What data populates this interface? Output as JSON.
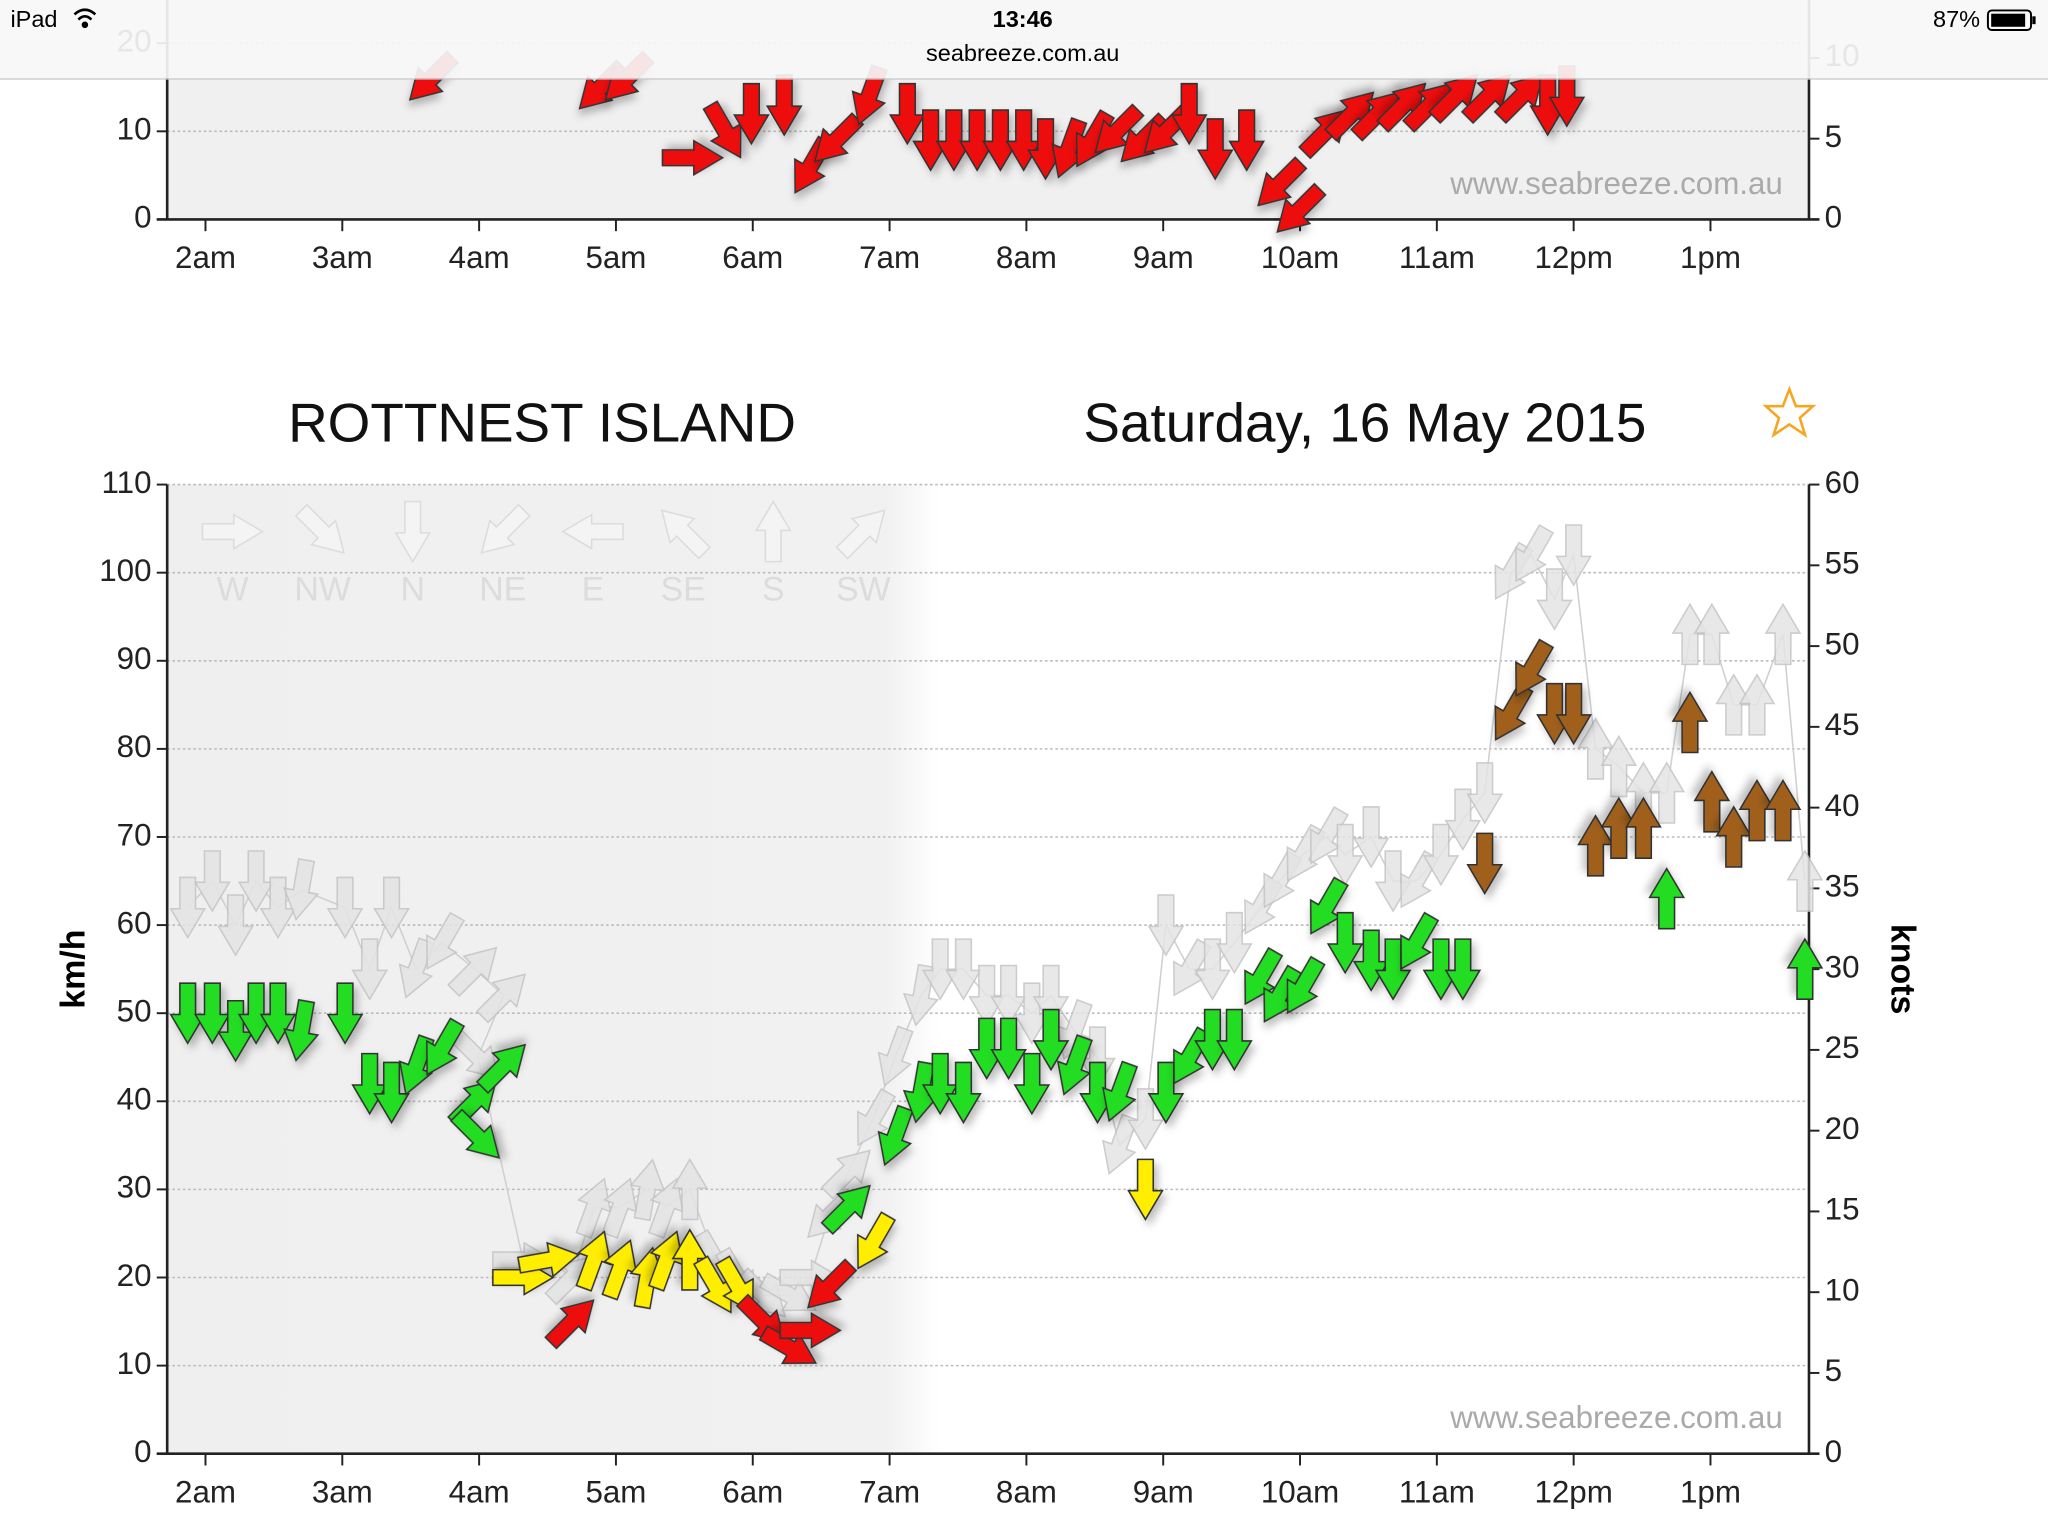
{
  "status_bar": {
    "device": "iPad",
    "time": "13:46",
    "url": "seabreeze.com.au",
    "battery": "87%"
  },
  "chart_data": [
    {
      "type": "wind-arrows",
      "watermark": "www.seabreeze.com.au",
      "xlim": [
        1.72,
        13.72
      ],
      "xticks": [
        {
          "value": 2,
          "label": "2am"
        },
        {
          "value": 3,
          "label": "3am"
        },
        {
          "value": 4,
          "label": "4am"
        },
        {
          "value": 5,
          "label": "5am"
        },
        {
          "value": 6,
          "label": "6am"
        },
        {
          "value": 7,
          "label": "7am"
        },
        {
          "value": 8,
          "label": "8am"
        },
        {
          "value": 9,
          "label": "9am"
        },
        {
          "value": 10,
          "label": "10am"
        },
        {
          "value": 11,
          "label": "11am"
        },
        {
          "value": 12,
          "label": "12pm"
        },
        {
          "value": 13,
          "label": "1pm"
        }
      ],
      "ylim": [
        0,
        110
      ],
      "yticks": [
        0,
        10,
        20
      ],
      "y2lim": [
        0,
        60
      ],
      "y2ticks": [
        0,
        5,
        10
      ],
      "grid": true,
      "x": [
        3.65,
        4.89,
        5.08,
        5.56,
        5.8,
        5.99,
        6.23,
        6.42,
        6.61,
        6.85,
        7.13,
        7.3,
        7.47,
        7.64,
        7.81,
        7.98,
        8.14,
        8.31,
        8.48,
        8.66,
        8.85,
        9.02,
        9.19,
        9.38,
        9.61,
        9.85,
        9.99,
        10.19,
        10.38,
        10.57,
        10.76,
        10.95,
        11.14,
        11.38,
        11.62,
        11.81,
        11.95
      ],
      "directions": [
        45,
        45,
        45,
        270,
        330,
        0,
        0,
        30,
        45,
        20,
        0,
        0,
        0,
        0,
        0,
        0,
        0,
        20,
        30,
        45,
        45,
        45,
        0,
        0,
        0,
        45,
        45,
        225,
        225,
        225,
        225,
        225,
        225,
        225,
        225,
        0,
        0
      ],
      "series": [
        {
          "color": "#ee1111",
          "values": [
            16,
            15,
            16,
            7,
            10,
            12,
            13,
            6,
            9,
            14,
            12,
            9,
            9,
            9,
            9,
            9,
            8,
            8,
            9,
            10,
            9,
            10,
            12,
            8,
            9,
            4,
            1,
            10,
            12,
            12,
            13,
            13,
            14,
            14,
            14,
            13,
            14
          ]
        }
      ]
    },
    {
      "type": "wind-arrows",
      "title": "ROTTNEST ISLAND",
      "subtitle": "Saturday, 16 May 2015",
      "y_label": "km/h",
      "y2_label": "knots",
      "watermark": "www.seabreeze.com.au",
      "direction_legend": [
        "W",
        "NW",
        "N",
        "NE",
        "E",
        "SE",
        "S",
        "SW"
      ],
      "xlim": [
        1.72,
        13.72
      ],
      "xticks": [
        {
          "value": 2,
          "label": "2am"
        },
        {
          "value": 3,
          "label": "3am"
        },
        {
          "value": 4,
          "label": "4am"
        },
        {
          "value": 5,
          "label": "5am"
        },
        {
          "value": 6,
          "label": "6am"
        },
        {
          "value": 7,
          "label": "7am"
        },
        {
          "value": 8,
          "label": "8am"
        },
        {
          "value": 9,
          "label": "9am"
        },
        {
          "value": 10,
          "label": "10am"
        },
        {
          "value": 11,
          "label": "11am"
        },
        {
          "value": 12,
          "label": "12pm"
        },
        {
          "value": 13,
          "label": "1pm"
        }
      ],
      "ylim": [
        0,
        110
      ],
      "yticks": [
        0,
        10,
        20,
        30,
        40,
        50,
        60,
        70,
        80,
        90,
        100,
        110
      ],
      "y2lim": [
        0,
        60
      ],
      "y2ticks": [
        0,
        5,
        10,
        15,
        20,
        25,
        30,
        35,
        40,
        45,
        50,
        55,
        60
      ],
      "grid": true,
      "x": [
        1.87,
        2.05,
        2.22,
        2.37,
        2.53,
        2.7,
        3.02,
        3.2,
        3.36,
        3.54,
        3.73,
        3.97,
        4.18,
        3.99,
        4.32,
        4.51,
        4.68,
        4.84,
        5.03,
        5.23,
        5.37,
        5.54,
        5.73,
        5.89,
        6.08,
        6.27,
        6.42,
        6.56,
        6.7,
        6.88,
        7.04,
        7.23,
        7.37,
        7.54,
        7.71,
        7.87,
        8.04,
        8.18,
        8.35,
        8.52,
        8.68,
        8.87,
        9.02,
        9.19,
        9.36,
        9.52,
        9.71,
        9.85,
        10.02,
        10.19,
        10.33,
        10.52,
        10.68,
        10.85,
        11.03,
        11.19,
        11.35,
        11.54,
        11.69,
        11.86,
        12.0,
        12.16,
        12.33,
        12.51,
        12.68,
        12.85,
        13.01,
        13.17,
        13.34,
        13.53,
        13.69
      ],
      "directions": [
        0,
        0,
        0,
        0,
        0,
        10,
        0,
        0,
        0,
        20,
        30,
        225,
        225,
        315,
        270,
        260,
        225,
        200,
        200,
        190,
        200,
        180,
        330,
        330,
        315,
        300,
        270,
        45,
        225,
        30,
        20,
        10,
        0,
        0,
        0,
        0,
        0,
        0,
        20,
        0,
        20,
        0,
        0,
        30,
        0,
        0,
        30,
        30,
        30,
        30,
        0,
        0,
        0,
        30,
        0,
        0,
        0,
        30,
        30,
        0,
        0,
        180,
        180,
        180,
        180,
        180,
        180,
        180,
        180,
        180,
        180
      ],
      "series": [
        {
          "color": "#e4e4e4",
          "connect": true,
          "values": [
            62,
            65,
            60,
            65,
            62,
            64,
            62,
            55,
            62,
            55,
            58,
            55,
            52,
            45,
            22,
            22,
            20,
            28,
            28,
            30,
            28,
            30,
            22,
            20,
            18,
            18,
            20,
            27,
            32,
            38,
            45,
            52,
            55,
            55,
            52,
            52,
            50,
            52,
            48,
            45,
            35,
            38,
            60,
            55,
            55,
            58,
            62,
            65,
            68,
            70,
            68,
            70,
            65,
            65,
            68,
            72,
            75,
            100,
            102,
            97,
            102,
            80,
            78,
            75,
            75,
            93,
            93,
            85,
            85,
            93,
            65
          ]
        },
        {
          "colors": [
            "#22dd22",
            "#22dd22",
            "#22dd22",
            "#22dd22",
            "#22dd22",
            "#22dd22",
            "#22dd22",
            "#22dd22",
            "#22dd22",
            "#22dd22",
            "#22dd22",
            "#22dd22",
            "#22dd22",
            "#22dd22",
            "#ffee00",
            "#ffee00",
            "#ee1111",
            "#ffee00",
            "#ffee00",
            "#ffee00",
            "#ffee00",
            "#ffee00",
            "#ffee00",
            "#ffee00",
            "#ee1111",
            "#ee1111",
            "#ee1111",
            "#ee1111",
            "#22dd22",
            "#ffee00",
            "#22dd22",
            "#22dd22",
            "#22dd22",
            "#22dd22",
            "#22dd22",
            "#22dd22",
            "#22dd22",
            "#22dd22",
            "#22dd22",
            "#22dd22",
            "#22dd22",
            "#ffee00",
            "#22dd22",
            "#22dd22",
            "#22dd22",
            "#22dd22",
            "#22dd22",
            "#22dd22",
            "#22dd22",
            "#22dd22",
            "#22dd22",
            "#22dd22",
            "#22dd22",
            "#22dd22",
            "#22dd22",
            "#22dd22",
            "#a0601a",
            "#a0601a",
            "#a0601a",
            "#a0601a",
            "#a0601a",
            "#a0601a",
            "#a0601a",
            "#a0601a",
            "#22dd22",
            "#a0601a",
            "#a0601a",
            "#a0601a",
            "#a0601a",
            "#a0601a",
            "#22dd22"
          ],
          "values": [
            50,
            50,
            48,
            50,
            50,
            48,
            50,
            42,
            41,
            44,
            46,
            40,
            44,
            36,
            20,
            22,
            15,
            22,
            21,
            20,
            22,
            22,
            19,
            19,
            15,
            12,
            14,
            19,
            28,
            24,
            36,
            41,
            42,
            41,
            46,
            46,
            42,
            47,
            44,
            41,
            41,
            30,
            41,
            45,
            47,
            47,
            54,
            52,
            53,
            62,
            58,
            56,
            55,
            58,
            55,
            55,
            67,
            84,
            89,
            84,
            84,
            69,
            71,
            71,
            63,
            83,
            74,
            70,
            73,
            73,
            55
          ]
        }
      ]
    }
  ]
}
